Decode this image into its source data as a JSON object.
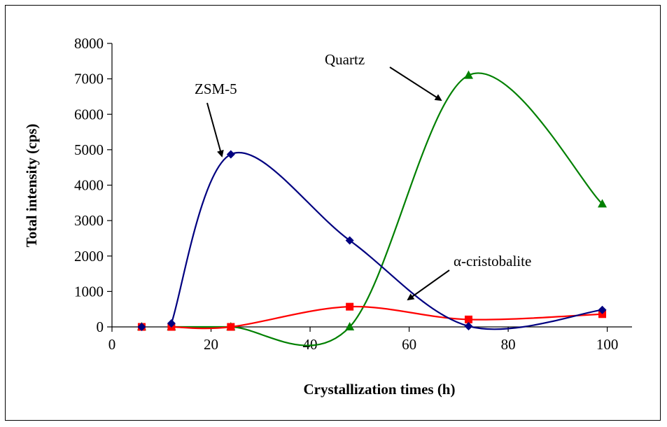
{
  "chart_data": {
    "type": "line",
    "title": "",
    "xlabel": "Crystallization times (h)",
    "ylabel": "Total intensity (cps)",
    "xlim": [
      0,
      105
    ],
    "ylim": [
      0,
      8000
    ],
    "xticks": [
      0,
      20,
      40,
      60,
      80,
      100
    ],
    "yticks": [
      0,
      1000,
      2000,
      3000,
      4000,
      5000,
      6000,
      7000,
      8000
    ],
    "grid": false,
    "legend": "none",
    "series": [
      {
        "name": "ZSM-5",
        "color": "#000080",
        "marker": "diamond",
        "x": [
          6,
          12,
          24,
          48,
          72,
          99
        ],
        "y": [
          0,
          100,
          4870,
          2440,
          20,
          480
        ]
      },
      {
        "name": "α-cristobalite",
        "color": "#ff0000",
        "marker": "square",
        "x": [
          6,
          12,
          24,
          48,
          72,
          99
        ],
        "y": [
          0,
          0,
          0,
          570,
          210,
          360
        ]
      },
      {
        "name": "Quartz",
        "color": "#008000",
        "marker": "triangle",
        "x": [
          6,
          12,
          24,
          48,
          72,
          99
        ],
        "y": [
          0,
          0,
          0,
          0,
          7100,
          3470
        ]
      }
    ],
    "annotations": [
      {
        "text": "ZSM-5",
        "series": "ZSM-5"
      },
      {
        "text": "Quartz",
        "series": "Quartz"
      },
      {
        "text": "α-cristobalite",
        "series": "α-cristobalite"
      }
    ]
  }
}
